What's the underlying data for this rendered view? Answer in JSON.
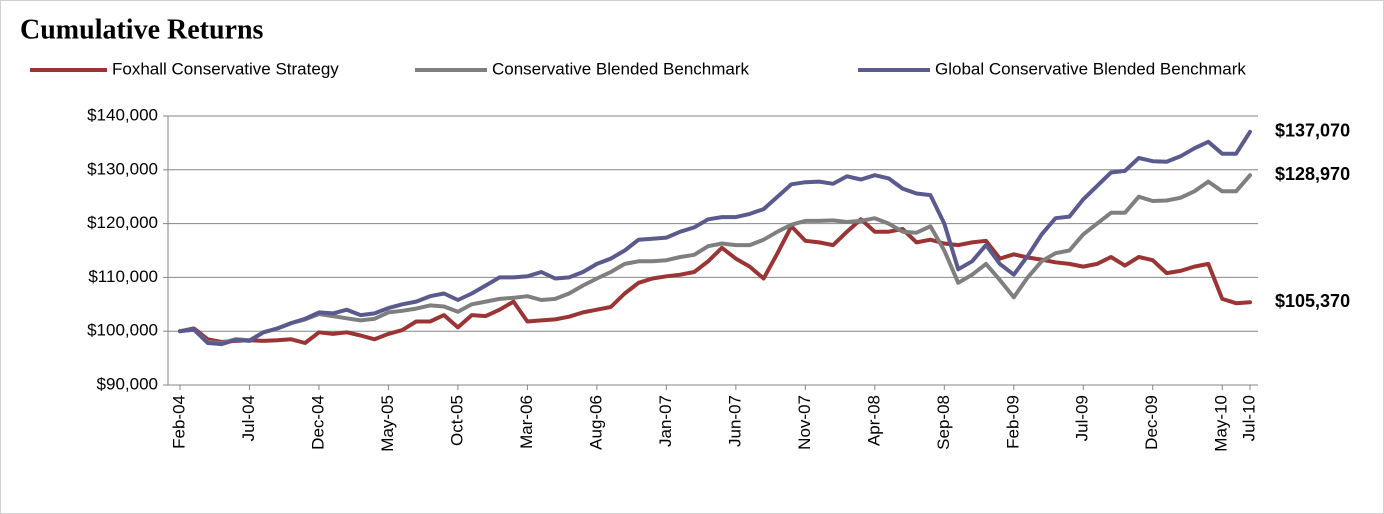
{
  "chart_data": {
    "type": "line",
    "title": "Cumulative Returns",
    "categories": [
      "Feb-04",
      null,
      null,
      null,
      null,
      "Jul-04",
      null,
      null,
      null,
      null,
      "Dec-04",
      null,
      null,
      null,
      null,
      "May-05",
      null,
      null,
      null,
      null,
      "Oct-05",
      null,
      null,
      null,
      null,
      "Mar-06",
      null,
      null,
      null,
      null,
      "Aug-06",
      null,
      null,
      null,
      null,
      "Jan-07",
      null,
      null,
      null,
      null,
      "Jun-07",
      null,
      null,
      null,
      null,
      "Nov-07",
      null,
      null,
      null,
      null,
      "Apr-08",
      null,
      null,
      null,
      null,
      "Sep-08",
      null,
      null,
      null,
      null,
      "Feb-09",
      null,
      null,
      null,
      null,
      "Jul-09",
      null,
      null,
      null,
      null,
      "Dec-09",
      null,
      null,
      null,
      null,
      "May-10",
      null,
      "Jul-10"
    ],
    "series": [
      {
        "name": "Foxhall Conservative Strategy",
        "color": "#9b3535",
        "end_label": "$105,370",
        "values": [
          100000,
          100500,
          98500,
          98000,
          98200,
          98300,
          98200,
          98300,
          98500,
          97800,
          99800,
          99500,
          99800,
          99200,
          98500,
          99500,
          100200,
          101800,
          101800,
          103000,
          100700,
          103000,
          102800,
          104000,
          105500,
          101800,
          102000,
          102200,
          102700,
          103500,
          104000,
          104500,
          107000,
          109000,
          109800,
          110200,
          110500,
          111000,
          113000,
          115500,
          113500,
          112000,
          109800,
          114500,
          119500,
          116800,
          116500,
          116000,
          118500,
          120800,
          118500,
          118500,
          119000,
          116500,
          117000,
          116300,
          116000,
          116500,
          116800,
          113500,
          114300,
          113700,
          113300,
          112800,
          112500,
          112000,
          112500,
          113800,
          112200,
          113800,
          113200,
          110800,
          111200,
          112000,
          112500,
          106000,
          105200,
          105370
        ]
      },
      {
        "name": "Conservative Blended Benchmark",
        "color": "#7f7f7f",
        "end_label": "$128,970",
        "values": [
          100000,
          100300,
          98000,
          97800,
          98500,
          98300,
          99800,
          100500,
          101500,
          102200,
          103200,
          102800,
          102400,
          102000,
          102300,
          103500,
          103800,
          104200,
          104800,
          104600,
          103600,
          105000,
          105500,
          106000,
          106200,
          106500,
          105800,
          106000,
          107000,
          108500,
          109800,
          111000,
          112500,
          113000,
          113000,
          113200,
          113800,
          114200,
          115800,
          116300,
          116000,
          116000,
          117000,
          118500,
          119800,
          120500,
          120500,
          120600,
          120300,
          120500,
          121000,
          120000,
          118500,
          118300,
          119500,
          115000,
          109000,
          110500,
          112500,
          109500,
          106300,
          110000,
          113000,
          114500,
          115000,
          118000,
          120000,
          122000,
          122000,
          125000,
          124200,
          124300,
          124800,
          126000,
          127800,
          126000,
          126000,
          128970
        ]
      },
      {
        "name": "Global Conservative Blended Benchmark",
        "color": "#5a5a8e",
        "end_label": "$137,070",
        "values": [
          100000,
          100300,
          97800,
          97600,
          98400,
          98200,
          99800,
          100500,
          101500,
          102300,
          103500,
          103300,
          104000,
          103000,
          103300,
          104300,
          105000,
          105500,
          106500,
          107000,
          105800,
          107000,
          108500,
          110000,
          110000,
          110200,
          111000,
          109800,
          110000,
          111000,
          112500,
          113500,
          115000,
          117000,
          117200,
          117400,
          118500,
          119300,
          120800,
          121200,
          121200,
          121800,
          122700,
          125000,
          127300,
          127700,
          127800,
          127400,
          128800,
          128200,
          129000,
          128400,
          126500,
          125600,
          125300,
          120000,
          111500,
          113000,
          116000,
          112500,
          110500,
          114000,
          118000,
          121000,
          121300,
          124500,
          127000,
          129500,
          129800,
          132200,
          131600,
          131500,
          132500,
          134000,
          135200,
          133000,
          133000,
          137070
        ]
      }
    ],
    "ylim": [
      90000,
      140000
    ],
    "yticks": [
      {
        "value": 90000,
        "label": "$90,000"
      },
      {
        "value": 100000,
        "label": "$100,000"
      },
      {
        "value": 110000,
        "label": "$110,000"
      },
      {
        "value": 120000,
        "label": "$120,000"
      },
      {
        "value": 130000,
        "label": "$130,000"
      },
      {
        "value": 140000,
        "label": "$140,000"
      }
    ],
    "grid": true
  }
}
